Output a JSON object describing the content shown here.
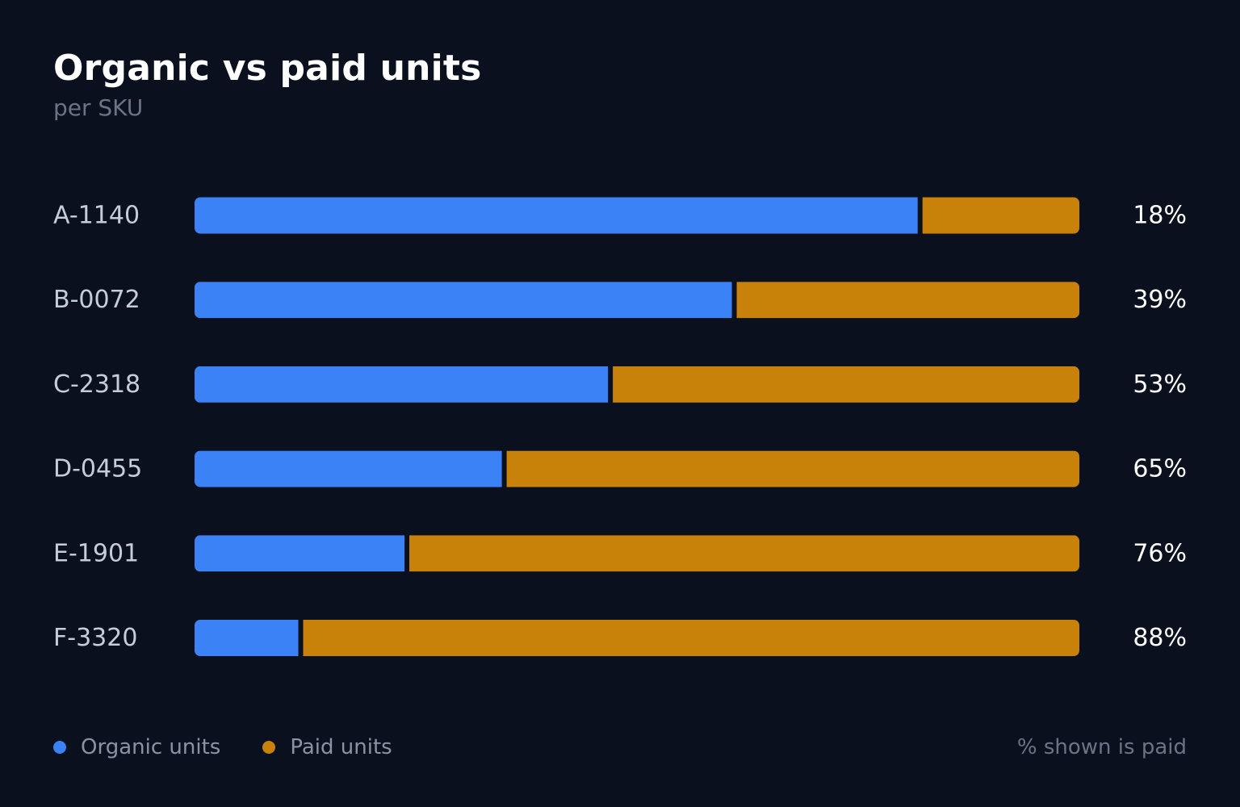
{
  "title": "Organic vs paid units",
  "subtitle": "per SKU",
  "legend": {
    "organic_label": "Organic units",
    "paid_label": "Paid units"
  },
  "footnote": "% shown is paid",
  "colors": {
    "background": "#0b101e",
    "organic": "#3b82f6",
    "paid": "#c8820a",
    "category_text": "#c7cdd8",
    "value_text": "#ffffff"
  },
  "chart_data": {
    "type": "bar",
    "orientation": "horizontal",
    "stacked": true,
    "normalized": true,
    "categories": [
      "A-1140",
      "B-0072",
      "C-2318",
      "D-0455",
      "E-1901",
      "F-3320"
    ],
    "series": [
      {
        "name": "Organic units",
        "values": [
          82,
          61,
          47,
          35,
          24,
          12
        ]
      },
      {
        "name": "Paid units",
        "values": [
          18,
          39,
          53,
          65,
          76,
          88
        ]
      }
    ],
    "data_labels": [
      "18%",
      "39%",
      "53%",
      "65%",
      "76%",
      "88%"
    ],
    "xlim": [
      0,
      100
    ],
    "grid": false,
    "legend_position": "bottom-left"
  }
}
